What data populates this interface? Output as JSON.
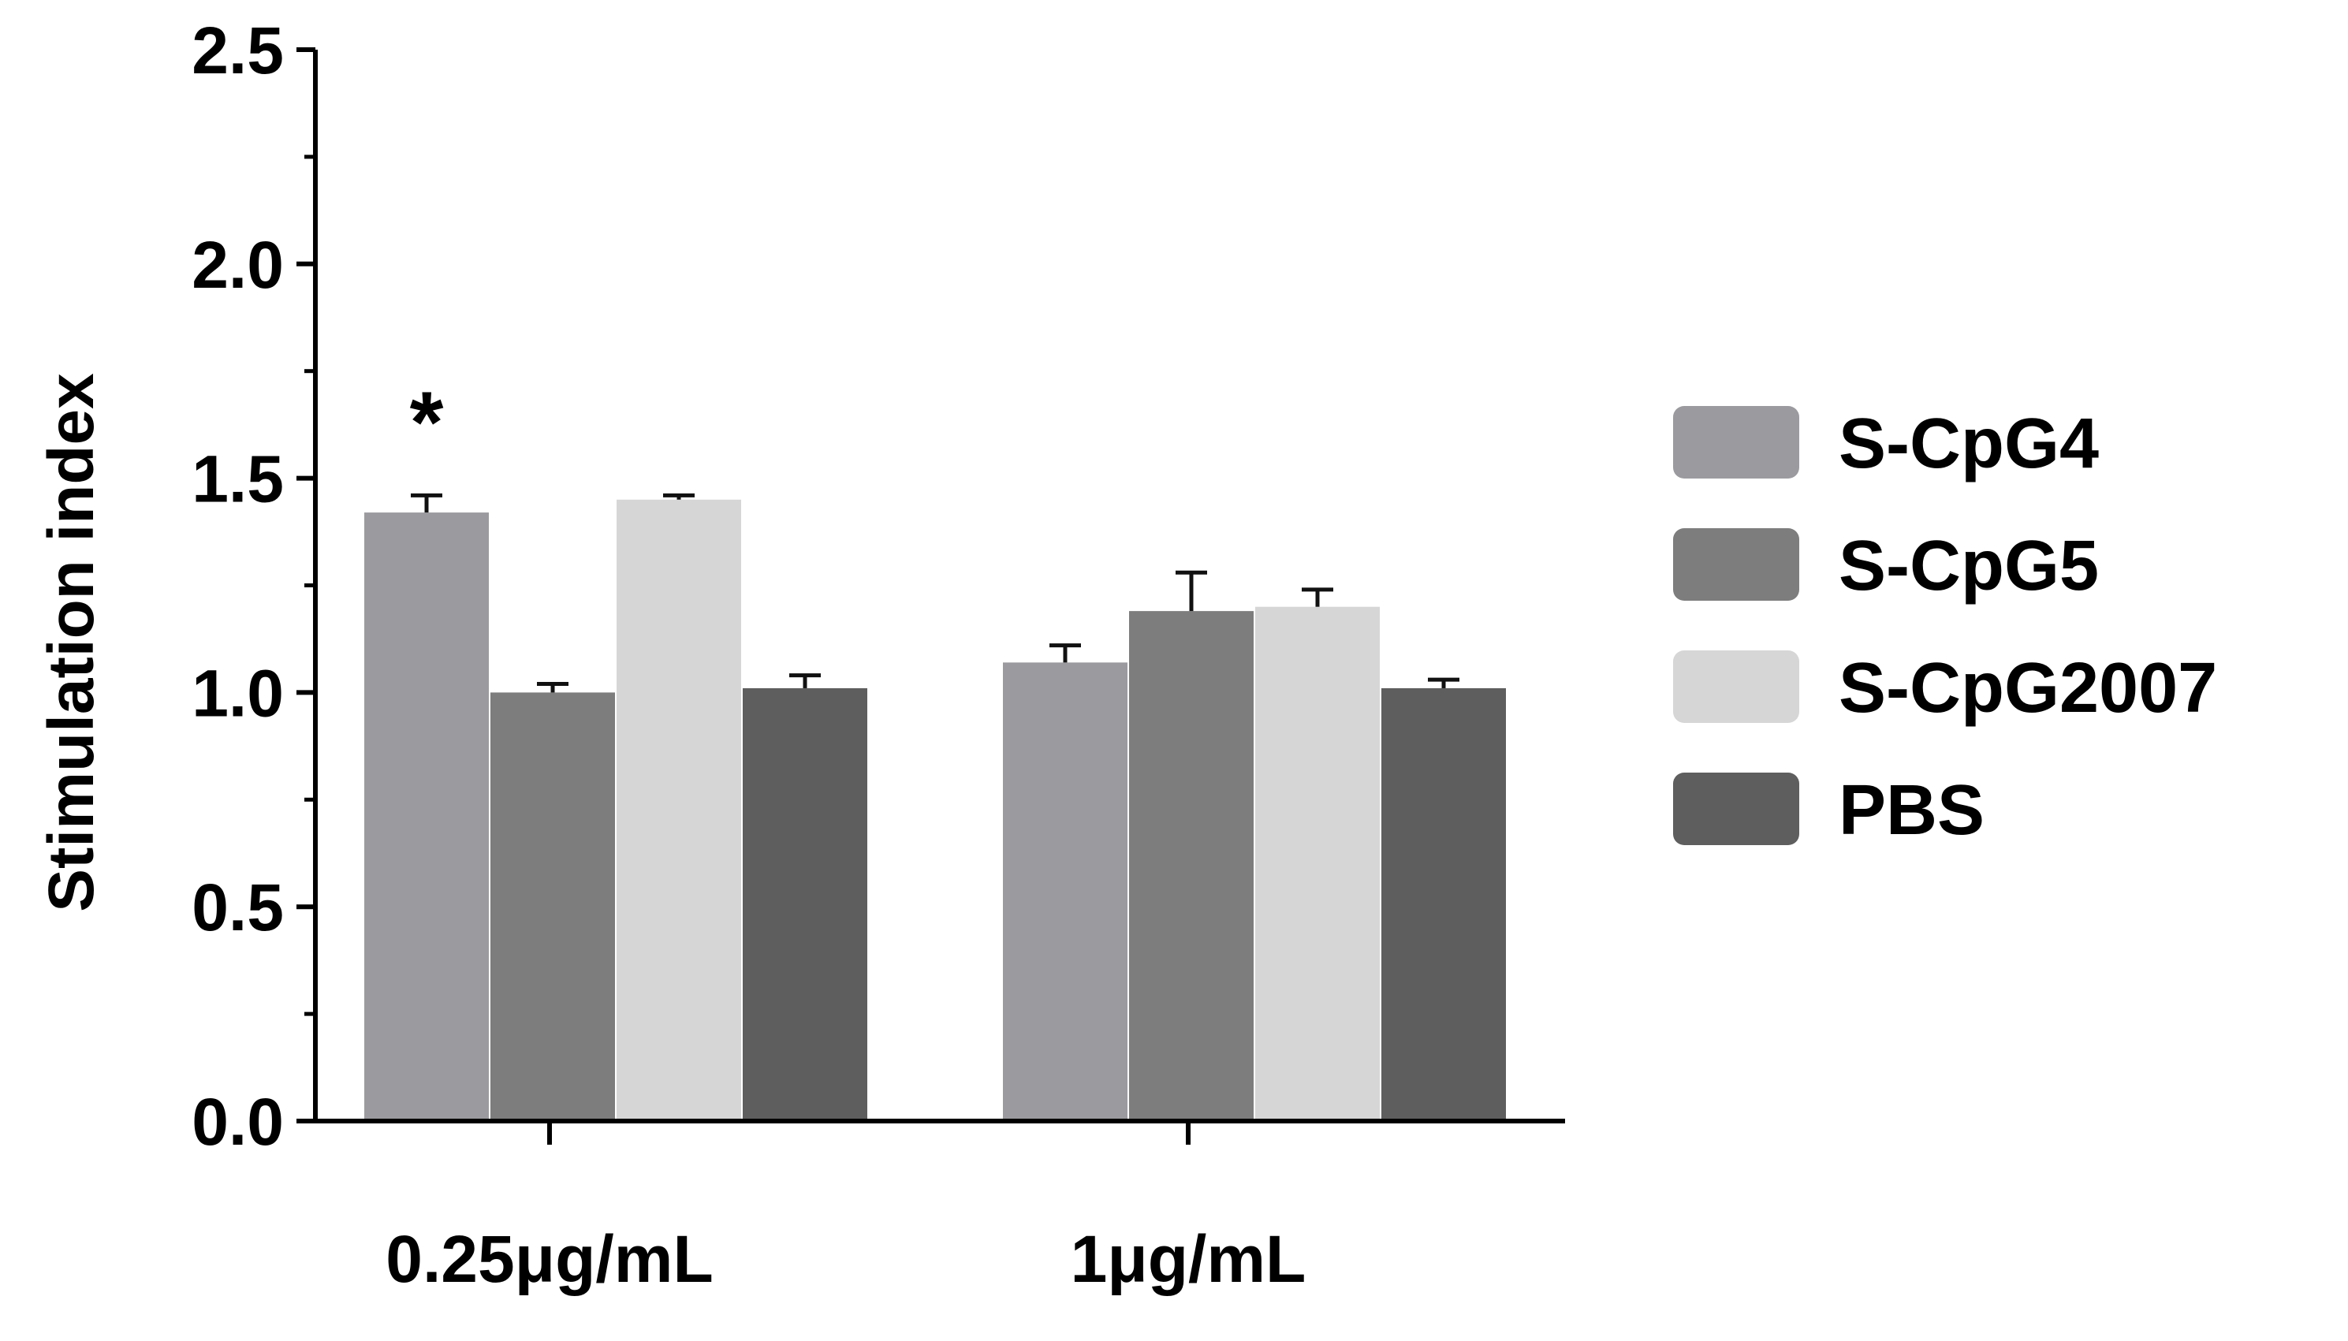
{
  "chart_data": {
    "type": "bar",
    "xlabel": "",
    "ylabel": "Stimulation index",
    "ylim": [
      0,
      2.5
    ],
    "yticks": [
      "0.0",
      "0.5",
      "1.0",
      "1.5",
      "2.0",
      "2.5"
    ],
    "categories": [
      "0.25μg/mL",
      "1μg/mL"
    ],
    "series": [
      {
        "name": "S-CpG4",
        "values": [
          1.42,
          1.07
        ],
        "errors": [
          0.04,
          0.04
        ],
        "color": "#9b9b9f"
      },
      {
        "name": "S-CpG5",
        "values": [
          1.0,
          1.19
        ],
        "errors": [
          0.02,
          0.09
        ],
        "color": "#7d7d7d"
      },
      {
        "name": "S-CpG2007",
        "values": [
          1.45,
          1.2
        ],
        "errors": [
          0.01,
          0.04
        ],
        "color": "#d6d6d6"
      },
      {
        "name": "PBS",
        "values": [
          1.01,
          1.01
        ],
        "errors": [
          0.03,
          0.02
        ],
        "color": "#5e5e5e"
      }
    ],
    "annotations": [
      {
        "text": "*",
        "series": "S-CpG4",
        "category": "0.25μg/mL"
      }
    ],
    "grid": false,
    "legend_position": "right"
  }
}
